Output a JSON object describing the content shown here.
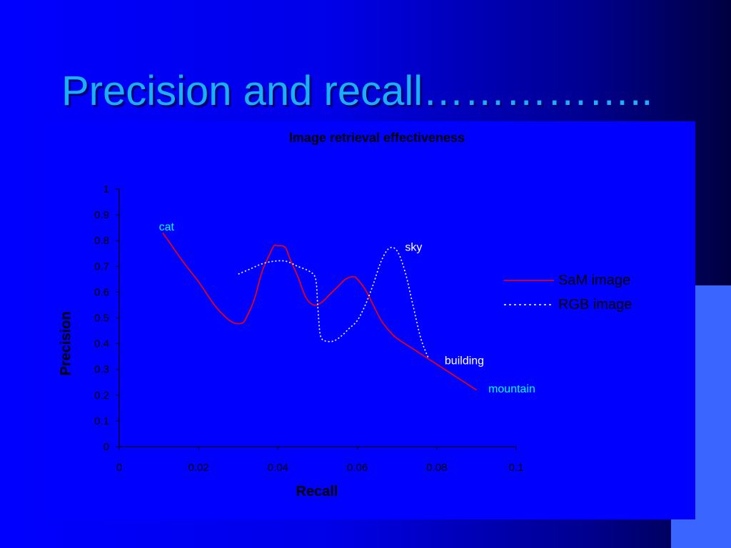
{
  "slide": {
    "title": "Precision and recall…………….."
  },
  "colors": {
    "series_sam": "#ff0000",
    "series_rgb": "#ffffff",
    "title_text": "#1ab0ff",
    "annotation_cyan": "#00ffff",
    "annotation_white": "#ffffff"
  },
  "chart_data": {
    "type": "line",
    "title": "Image retrieval effectiveness",
    "xlabel": "Recall",
    "ylabel": "Precision",
    "xlim": [
      0,
      0.1
    ],
    "ylim": [
      0,
      1
    ],
    "xticks": [
      "0",
      "0.02",
      "0.04",
      "0.06",
      "0.08",
      "0.1"
    ],
    "yticks": [
      "0",
      "0.1",
      "0.2",
      "0.3",
      "0.4",
      "0.5",
      "0.6",
      "0.7",
      "0.8",
      "0.9",
      "1"
    ],
    "grid": false,
    "legend_position": "right",
    "series": [
      {
        "name": "SaM image",
        "style": "solid",
        "x": [
          0.011,
          0.016,
          0.02,
          0.024,
          0.027,
          0.029,
          0.031,
          0.032,
          0.034,
          0.036,
          0.038,
          0.039,
          0.04,
          0.041,
          0.042,
          0.043,
          0.045,
          0.047,
          0.049,
          0.051,
          0.053,
          0.055,
          0.057,
          0.059,
          0.06,
          0.062,
          0.064,
          0.066,
          0.068,
          0.07,
          0.074,
          0.078,
          0.082,
          0.086,
          0.09
        ],
        "y": [
          0.83,
          0.72,
          0.64,
          0.55,
          0.5,
          0.48,
          0.48,
          0.5,
          0.57,
          0.68,
          0.75,
          0.78,
          0.78,
          0.78,
          0.77,
          0.73,
          0.66,
          0.58,
          0.55,
          0.56,
          0.59,
          0.62,
          0.65,
          0.66,
          0.65,
          0.61,
          0.55,
          0.49,
          0.45,
          0.42,
          0.38,
          0.34,
          0.3,
          0.26,
          0.22
        ]
      },
      {
        "name": "RGB image",
        "style": "dotted",
        "x": [
          0.03,
          0.033,
          0.036,
          0.039,
          0.042,
          0.045,
          0.048,
          0.0495,
          0.05,
          0.0505,
          0.051,
          0.052,
          0.054,
          0.056,
          0.058,
          0.06,
          0.062,
          0.064,
          0.066,
          0.068,
          0.07,
          0.072,
          0.074,
          0.076,
          0.078
        ],
        "y": [
          0.67,
          0.69,
          0.71,
          0.72,
          0.72,
          0.7,
          0.68,
          0.65,
          0.55,
          0.45,
          0.42,
          0.41,
          0.41,
          0.43,
          0.46,
          0.49,
          0.55,
          0.63,
          0.72,
          0.77,
          0.76,
          0.68,
          0.55,
          0.42,
          0.34
        ]
      }
    ],
    "annotations": [
      {
        "text": "cat",
        "x": 0.01,
        "y": 0.84,
        "color": "cyan"
      },
      {
        "text": "sky",
        "x": 0.072,
        "y": 0.76,
        "color": "white"
      },
      {
        "text": "building",
        "x": 0.082,
        "y": 0.32,
        "color": "white"
      },
      {
        "text": "mountain",
        "x": 0.093,
        "y": 0.21,
        "color": "cyan"
      }
    ]
  }
}
